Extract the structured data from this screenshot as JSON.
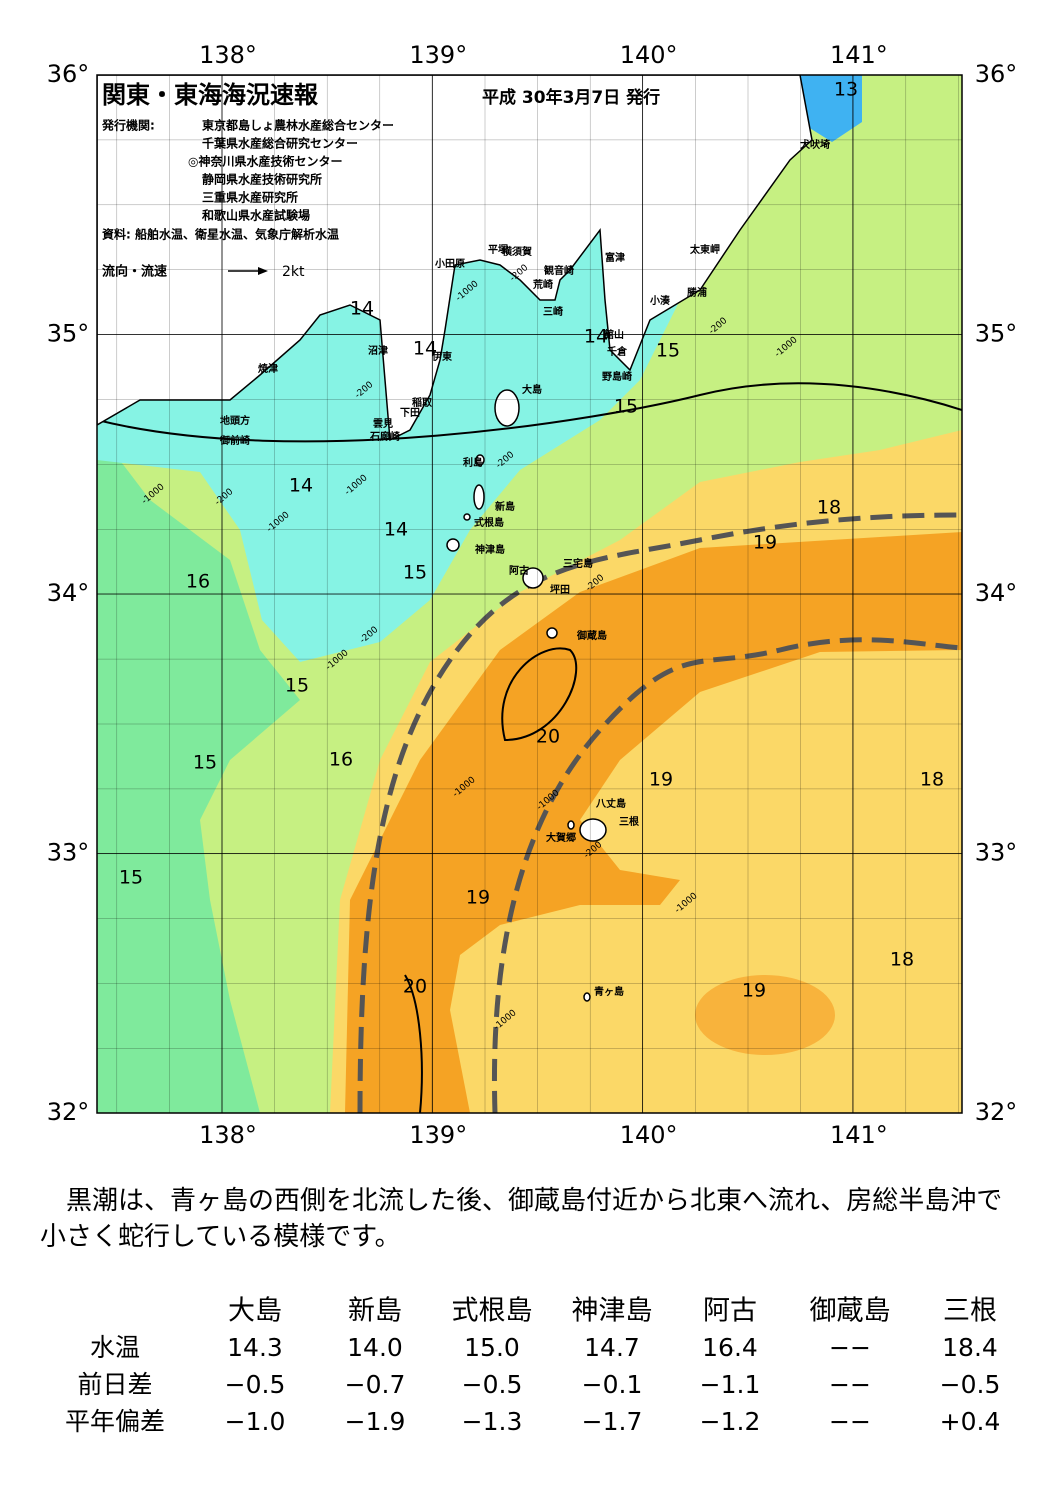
{
  "header": {
    "title": "関東・東海海況速報",
    "date": "平成 30年3月7日 発行",
    "issuer_label": "発行機関:",
    "issuers": [
      "東京都島しょ農林水産総合センター",
      "千葉県水産総合研究センター",
      "◎神奈川県水産技術センター",
      "静岡県水産技術研究所",
      "三重県水産研究所",
      "和歌山県水産試験場"
    ],
    "source": "資料: 船舶水温、衛星水温、気象庁解析水温",
    "legend_label": "流向・流速",
    "legend_scale": "2kt"
  },
  "map": {
    "lon_ticks": [
      {
        "value": 138,
        "label": "138°"
      },
      {
        "value": 139,
        "label": "139°"
      },
      {
        "value": 140,
        "label": "140°"
      },
      {
        "value": 141,
        "label": "141°"
      }
    ],
    "lat_ticks": [
      {
        "value": 36,
        "label": "36°"
      },
      {
        "value": 35,
        "label": "35°"
      },
      {
        "value": 34,
        "label": "34°"
      },
      {
        "value": 33,
        "label": "33°"
      },
      {
        "value": 32,
        "label": "32°"
      }
    ],
    "temperature_labels": [
      "13",
      "14",
      "14",
      "14",
      "15",
      "15",
      "14",
      "14",
      "15",
      "16",
      "18",
      "19",
      "15",
      "20",
      "15",
      "16",
      "19",
      "18",
      "15",
      "19",
      "18",
      "20",
      "19"
    ],
    "place_names": [
      "犬吠埼",
      "太東岬",
      "勝浦",
      "小湊",
      "富津",
      "横須賀",
      "観音崎",
      "平塚",
      "小田原",
      "荒崎",
      "三崎",
      "館山",
      "千倉",
      "野島崎",
      "沼津",
      "伊東",
      "焼津",
      "大島",
      "稲取",
      "下田",
      "雲見",
      "石廊崎",
      "地頭方",
      "御前崎",
      "利島",
      "新島",
      "式根島",
      "神津島",
      "三宅島",
      "阿古",
      "坪田",
      "御蔵島",
      "八丈島",
      "三根",
      "大賀郷",
      "青ヶ島"
    ],
    "depth_labels": [
      "-200",
      "-1000",
      "-200",
      "-200",
      "-1000",
      "-200",
      "-1000",
      "-1000",
      "-200",
      "-1000",
      "-1000",
      "-200",
      "-1000",
      "-1000",
      "-200",
      "-1000",
      "-1000",
      "-200"
    ]
  },
  "summary": "黒潮は、青ヶ島の西側を北流した後、御蔵島付近から北東へ流れ、房総半島沖で小さく蛇行している模様です。",
  "table": {
    "columns": [
      "大島",
      "新島",
      "式根島",
      "神津島",
      "阿古",
      "御蔵島",
      "三根"
    ],
    "rows": [
      [
        "水温",
        "14.3",
        "14.0",
        "15.0",
        "14.7",
        "16.4",
        "−−",
        "18.4"
      ],
      [
        "前日差",
        "−0.5",
        "−0.7",
        "−0.5",
        "−0.1",
        "−1.1",
        "−−",
        "−0.5"
      ],
      [
        "平年偏差",
        "−1.0",
        "−1.9",
        "−1.3",
        "−1.7",
        "−1.2",
        "−−",
        "+0.4"
      ]
    ]
  }
}
